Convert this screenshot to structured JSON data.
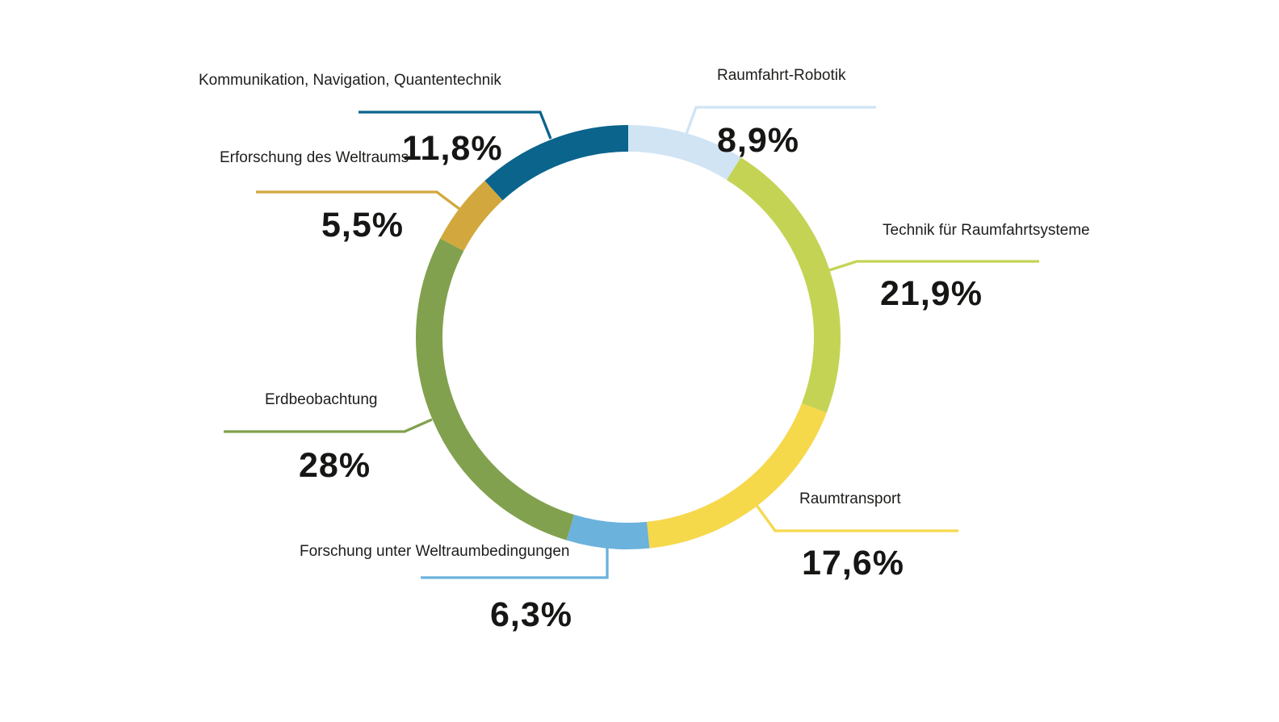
{
  "chart_data": {
    "type": "pie",
    "variant": "donut",
    "title": "",
    "start_angle_deg": 0,
    "direction": "clockwise",
    "legend_position": "callout-labels",
    "background": "#ffffff",
    "text_color": "#1d1d1b",
    "segments": [
      {
        "label": "Raumfahrt-Robotik",
        "value": 8.9,
        "pct": "8,9%",
        "color": "#d0e4f4"
      },
      {
        "label": "Technik für Raumfahrtsysteme",
        "value": 21.9,
        "pct": "21,9%",
        "color": "#c5d355"
      },
      {
        "label": "Raumtransport",
        "value": 17.6,
        "pct": "17,6%",
        "color": "#f6d84b"
      },
      {
        "label": "Forschung unter Weltraumbedingungen",
        "value": 6.3,
        "pct": "6,3%",
        "color": "#6bb2dc"
      },
      {
        "label": "Erdbeobachtung",
        "value": 28,
        "pct": "28%",
        "color": "#81a14e"
      },
      {
        "label": "Erforschung des Weltraums",
        "value": 5.5,
        "pct": "5,5%",
        "color": "#d2a83e"
      },
      {
        "label": "Kommunikation, Navigation, Quantentechnik",
        "value": 11.8,
        "pct": "11,8%",
        "color": "#0a648c"
      }
    ]
  }
}
